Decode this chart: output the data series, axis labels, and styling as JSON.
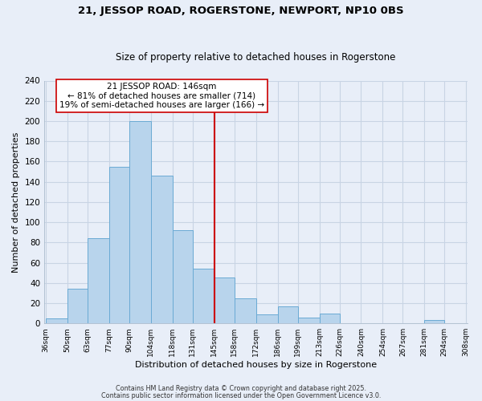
{
  "title": "21, JESSOP ROAD, ROGERSTONE, NEWPORT, NP10 0BS",
  "subtitle": "Size of property relative to detached houses in Rogerstone",
  "xlabel": "Distribution of detached houses by size in Rogerstone",
  "ylabel": "Number of detached properties",
  "bins": [
    36,
    50,
    63,
    77,
    90,
    104,
    118,
    131,
    145,
    158,
    172,
    186,
    199,
    213,
    226,
    240,
    254,
    267,
    281,
    294,
    308
  ],
  "counts": [
    5,
    34,
    84,
    155,
    200,
    146,
    92,
    54,
    45,
    25,
    9,
    17,
    6,
    10,
    0,
    0,
    0,
    0,
    3,
    0
  ],
  "bar_color": "#b8d4ec",
  "bar_edge_color": "#6aaad4",
  "vline_x": 145,
  "vline_color": "#cc0000",
  "annotation_text": "21 JESSOP ROAD: 146sqm\n← 81% of detached houses are smaller (714)\n19% of semi-detached houses are larger (166) →",
  "annotation_box_color": "#ffffff",
  "annotation_box_edge": "#cc0000",
  "ylim": [
    0,
    240
  ],
  "yticks": [
    0,
    20,
    40,
    60,
    80,
    100,
    120,
    140,
    160,
    180,
    200,
    220,
    240
  ],
  "grid_color": "#c8d4e4",
  "bg_color": "#e8eef8",
  "footer1": "Contains HM Land Registry data © Crown copyright and database right 2025.",
  "footer2": "Contains public sector information licensed under the Open Government Licence v3.0."
}
